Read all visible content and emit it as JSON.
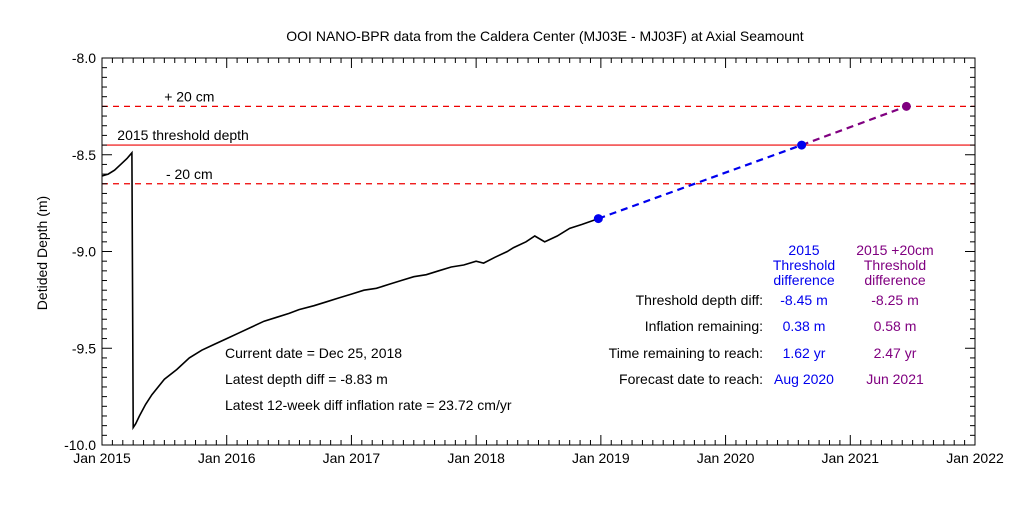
{
  "chart_data": {
    "type": "line",
    "title": "OOI NANO-BPR data from the Caldera Center (MJ03E - MJ03F) at Axial Seamount",
    "xlabel": "",
    "ylabel": "Detided Depth (m)",
    "xlim": [
      2015.0,
      2022.0
    ],
    "ylim": [
      -10.0,
      -8.0
    ],
    "x_ticks": [
      {
        "value": 2015,
        "label": "Jan 2015"
      },
      {
        "value": 2016,
        "label": "Jan 2016"
      },
      {
        "value": 2017,
        "label": "Jan 2017"
      },
      {
        "value": 2018,
        "label": "Jan 2018"
      },
      {
        "value": 2019,
        "label": "Jan 2019"
      },
      {
        "value": 2020,
        "label": "Jan 2020"
      },
      {
        "value": 2021,
        "label": "Jan 2021"
      },
      {
        "value": 2022,
        "label": "Jan 2022"
      }
    ],
    "y_ticks": [
      {
        "value": -8.0,
        "label": "-8.0"
      },
      {
        "value": -8.5,
        "label": "-8.5"
      },
      {
        "value": -9.0,
        "label": "-9.0"
      },
      {
        "value": -9.5,
        "label": "-9.5"
      },
      {
        "value": -10.0,
        "label": "-10.0"
      }
    ],
    "series": [
      {
        "color": "#000000",
        "style": "solid",
        "x": [
          2015.0,
          2015.05,
          2015.1,
          2015.15,
          2015.2,
          2015.24,
          2015.25,
          2015.27,
          2015.3,
          2015.35,
          2015.4,
          2015.5,
          2015.6,
          2015.7,
          2015.8,
          2015.9,
          2016.0,
          2016.1,
          2016.2,
          2016.3,
          2016.4,
          2016.5,
          2016.58,
          2016.7,
          2016.8,
          2016.9,
          2017.0,
          2017.1,
          2017.2,
          2017.3,
          2017.4,
          2017.5,
          2017.6,
          2017.7,
          2017.8,
          2017.9,
          2018.0,
          2018.06,
          2018.15,
          2018.25,
          2018.3,
          2018.4,
          2018.47,
          2018.55,
          2018.65,
          2018.75,
          2018.85,
          2018.98
        ],
        "y": [
          -8.61,
          -8.6,
          -8.58,
          -8.55,
          -8.52,
          -8.49,
          -9.91,
          -9.89,
          -9.85,
          -9.79,
          -9.74,
          -9.66,
          -9.61,
          -9.55,
          -9.51,
          -9.48,
          -9.45,
          -9.42,
          -9.39,
          -9.36,
          -9.34,
          -9.32,
          -9.3,
          -9.28,
          -9.26,
          -9.24,
          -9.22,
          -9.2,
          -9.19,
          -9.17,
          -9.15,
          -9.13,
          -9.12,
          -9.1,
          -9.08,
          -9.07,
          -9.05,
          -9.06,
          -9.03,
          -9.0,
          -8.98,
          -8.95,
          -8.92,
          -8.95,
          -8.92,
          -8.88,
          -8.86,
          -8.83
        ]
      }
    ],
    "forecasts": [
      {
        "color": "#0000ee",
        "x": [
          2018.98,
          2020.61
        ],
        "y": [
          -8.83,
          -8.45
        ]
      },
      {
        "color": "#800080",
        "x": [
          2020.61,
          2021.45
        ],
        "y": [
          -8.45,
          -8.25
        ]
      }
    ],
    "markers": [
      {
        "color": "#0000ee",
        "x": 2018.98,
        "y": -8.83
      },
      {
        "color": "#0000ee",
        "x": 2020.61,
        "y": -8.45
      },
      {
        "color": "#800080",
        "x": 2021.45,
        "y": -8.25
      }
    ],
    "reference_lines": [
      {
        "y": -8.25,
        "style": "dashed",
        "color": "#ee0000",
        "label": "+ 20 cm",
        "label_x": 2015.7
      },
      {
        "y": -8.45,
        "style": "solid",
        "color": "#ee0000",
        "label": "2015 threshold depth",
        "label_x": 2015.65
      },
      {
        "y": -8.65,
        "style": "dashed",
        "color": "#ee0000",
        "label": "- 20 cm",
        "label_x": 2015.7
      }
    ],
    "annotations": {
      "current_date": "Current date = Dec 25, 2018",
      "latest_depth": "Latest depth diff =   -8.83 m",
      "inflation_rate": "Latest 12-week diff inflation rate =  23.72 cm/yr"
    },
    "table": {
      "columns": [
        {
          "header": [
            "2015",
            "Threshold",
            "difference"
          ],
          "color": "#0000ee"
        },
        {
          "header": [
            "2015 +20cm",
            "Threshold",
            "difference"
          ],
          "color": "#800080"
        }
      ],
      "rows": [
        {
          "label": "Threshold depth diff:",
          "values": [
            "-8.45 m",
            "-8.25 m"
          ]
        },
        {
          "label": "Inflation  remaining:",
          "values": [
            "0.38 m",
            "0.58 m"
          ]
        },
        {
          "label": "Time remaining to reach:",
          "values": [
            "1.62 yr",
            "2.47 yr"
          ]
        },
        {
          "label": "Forecast  date to reach:",
          "values": [
            "Aug 2020",
            "Jun 2021"
          ]
        }
      ]
    }
  }
}
